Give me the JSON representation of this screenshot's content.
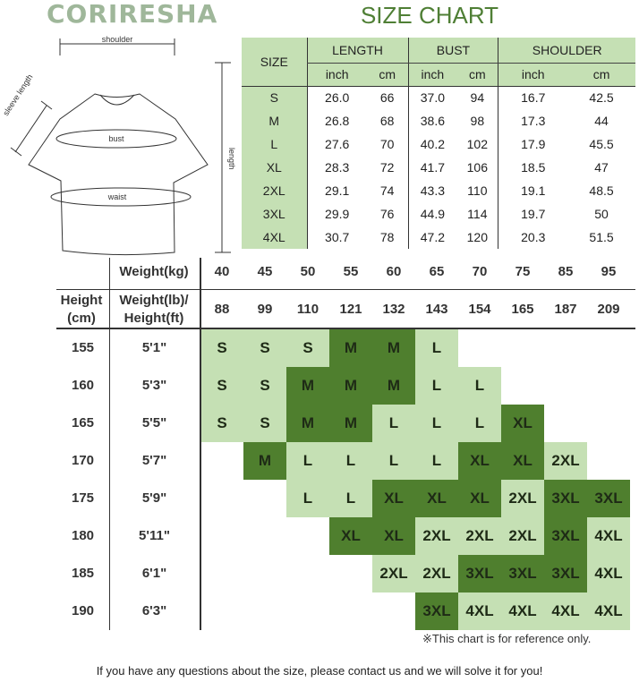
{
  "brand": "CORIRESHA",
  "title": "SIZE CHART",
  "diagram": {
    "shoulder": "shoulder",
    "sleeve": "sleeve length",
    "bust": "bust",
    "waist": "waist",
    "length": "length"
  },
  "measure_table": {
    "size_header": "SIZE",
    "groups": [
      "LENGTH",
      "BUST",
      "SHOULDER"
    ],
    "units": [
      "inch",
      "cm",
      "inch",
      "cm",
      "inch",
      "cm"
    ],
    "rows": [
      [
        "S",
        "26.0",
        "66",
        "37.0",
        "94",
        "16.7",
        "42.5"
      ],
      [
        "M",
        "26.8",
        "68",
        "38.6",
        "98",
        "17.3",
        "44"
      ],
      [
        "L",
        "27.6",
        "70",
        "40.2",
        "102",
        "17.9",
        "45.5"
      ],
      [
        "XL",
        "28.3",
        "72",
        "41.7",
        "106",
        "18.5",
        "47"
      ],
      [
        "2XL",
        "29.1",
        "74",
        "43.3",
        "110",
        "19.1",
        "48.5"
      ],
      [
        "3XL",
        "29.9",
        "76",
        "44.9",
        "114",
        "19.7",
        "50"
      ],
      [
        "4XL",
        "30.7",
        "78",
        "47.2",
        "120",
        "20.3",
        "51.5"
      ]
    ]
  },
  "fit_table": {
    "weight_kg_label": "Weight(kg)",
    "height_cm_label": "Height\n(cm)",
    "lb_ft_label": "Weight(lb)/\nHeight(ft)",
    "weights_kg": [
      "40",
      "45",
      "50",
      "55",
      "60",
      "65",
      "70",
      "75",
      "85",
      "95"
    ],
    "weights_lb": [
      "88",
      "99",
      "110",
      "121",
      "132",
      "143",
      "154",
      "165",
      "187",
      "209"
    ],
    "rows": [
      {
        "cm": "155",
        "ft": "5'1\"",
        "cells": [
          "S",
          "S",
          "S",
          "M",
          "M",
          "L",
          "",
          "",
          "",
          ""
        ]
      },
      {
        "cm": "160",
        "ft": "5'3\"",
        "cells": [
          "S",
          "S",
          "M",
          "M",
          "M",
          "L",
          "L",
          "",
          "",
          ""
        ]
      },
      {
        "cm": "165",
        "ft": "5'5\"",
        "cells": [
          "S",
          "S",
          "M",
          "M",
          "L",
          "L",
          "L",
          "XL",
          "",
          ""
        ]
      },
      {
        "cm": "170",
        "ft": "5'7\"",
        "cells": [
          "",
          "M",
          "L",
          "L",
          "L",
          "L",
          "XL",
          "XL",
          "2XL",
          ""
        ]
      },
      {
        "cm": "175",
        "ft": "5'9\"",
        "cells": [
          "",
          "",
          "L",
          "L",
          "XL",
          "XL",
          "XL",
          "2XL",
          "3XL",
          "3XL"
        ]
      },
      {
        "cm": "180",
        "ft": "5'11\"",
        "cells": [
          "",
          "",
          "",
          "XL",
          "XL",
          "2XL",
          "2XL",
          "2XL",
          "3XL",
          "4XL"
        ]
      },
      {
        "cm": "185",
        "ft": "6'1\"",
        "cells": [
          "",
          "",
          "",
          "",
          "2XL",
          "2XL",
          "3XL",
          "3XL",
          "3XL",
          "4XL"
        ]
      },
      {
        "cm": "190",
        "ft": "6'3\"",
        "cells": [
          "",
          "",
          "",
          "",
          "",
          "3XL",
          "4XL",
          "4XL",
          "4XL",
          "4XL"
        ]
      }
    ],
    "shades": [
      "LLLDDL....",
      "LLDDDLL...",
      "LLDDLLLD..",
      ".DLLLLDDL.",
      "..LLDDDLDD",
      "...DDLLLDL",
      "....LLDDDL",
      ".....DLLLL"
    ],
    "colors": {
      "light": "#c5e0b4",
      "dark": "#4f7f2e"
    }
  },
  "note": "※This chart is for reference only.",
  "footer": "If you have any questions about the size, please contact us and we will solve it for you!"
}
